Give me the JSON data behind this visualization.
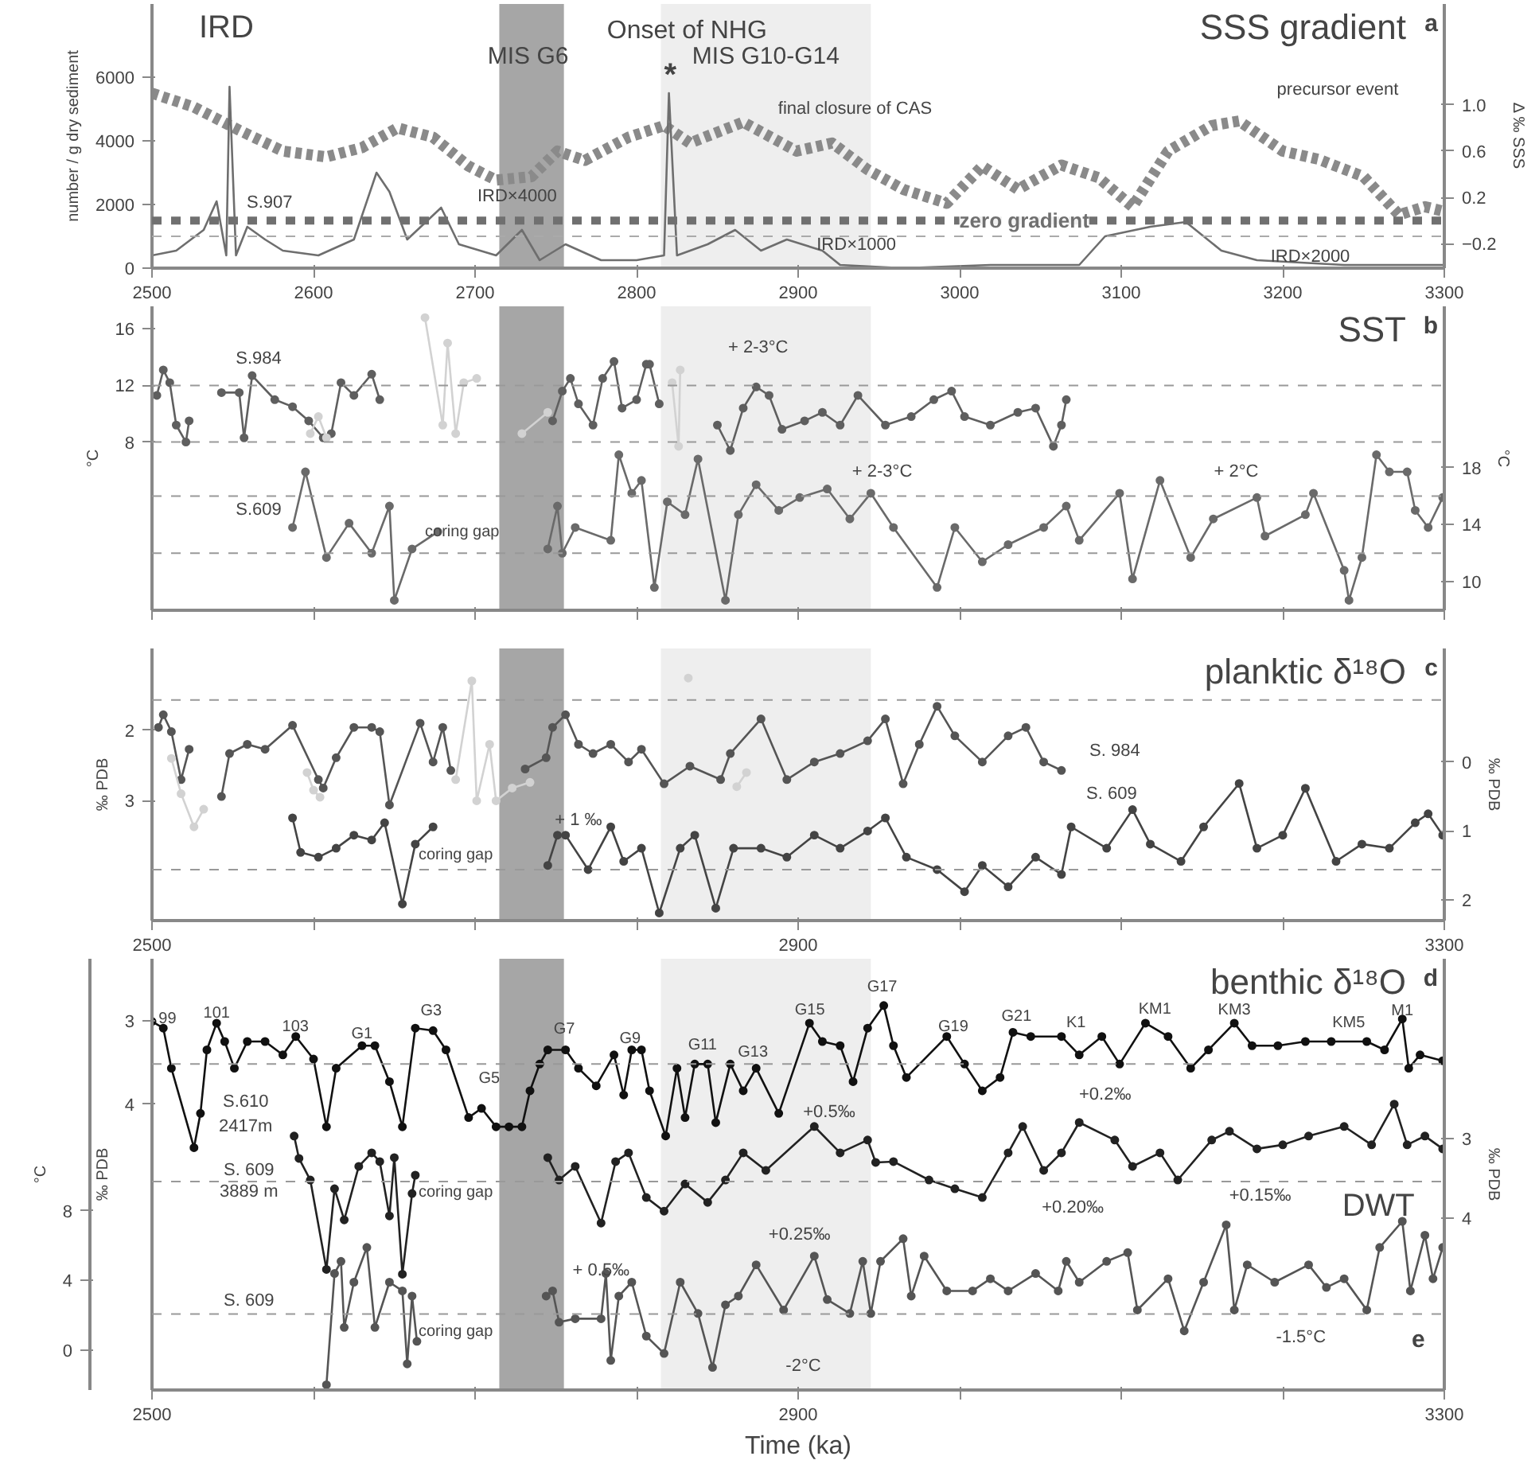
{
  "chart_data": [
    {
      "type": "line",
      "title": "SSS gradient",
      "subtitle": "a",
      "ylabel": "number / g dry sediment",
      "y2label": "Δ ‰ SSS",
      "xlim": [
        2500,
        3300
      ],
      "ylim": [
        0,
        8300
      ],
      "y2lim": [
        -0.41,
        1.87
      ],
      "xticks": [
        2500,
        2600,
        2700,
        2800,
        2900,
        3000,
        3100,
        3200,
        3300
      ],
      "yticks": [
        0,
        2000,
        4000,
        6000
      ],
      "y2ticks": [
        -0.2,
        0.2,
        0.6,
        {
          "value": 1,
          "label": "1.0"
        }
      ],
      "grid": false,
      "marker": "none",
      "series": [
        {
          "color": "#8a8a8a",
          "axis": "y2",
          "line_style": "dotted",
          "x": [
            2500,
            2526,
            2554,
            2581,
            2608,
            2630,
            2652,
            2674,
            2696,
            2713,
            2735,
            2751,
            2768,
            2795,
            2817,
            2833,
            2866,
            2899,
            2921,
            2943,
            2965,
            2992,
            3014,
            3036,
            3063,
            3086,
            3107,
            3129,
            3156,
            3173,
            3200,
            3222,
            3250,
            3272,
            3288,
            3300
          ],
          "values": [
            1.1,
            0.98,
            0.78,
            0.6,
            0.55,
            0.63,
            0.8,
            0.72,
            0.47,
            0.35,
            0.38,
            0.6,
            0.52,
            0.72,
            0.82,
            0.67,
            0.85,
            0.6,
            0.67,
            0.44,
            0.27,
            0.15,
            0.47,
            0.27,
            0.48,
            0.37,
            0.12,
            0.6,
            0.82,
            0.86,
            0.6,
            0.53,
            0.38,
            0.05,
            0.12,
            0.08
          ]
        },
        {
          "color": "#6e6e6e",
          "axis": "y",
          "line_style": "solid",
          "x": [
            2500,
            2515,
            2532,
            2540,
            2546,
            2548,
            2552,
            2559,
            2570,
            2581,
            2603,
            2625,
            2639,
            2647,
            2658,
            2679,
            2690,
            2713,
            2729,
            2740,
            2756,
            2778,
            2800,
            2817,
            2820,
            2825,
            2844,
            2861,
            2877,
            2893,
            2915,
            2926,
            2965,
            3019,
            3074,
            3090,
            3118,
            3140,
            3162,
            3184,
            3238,
            3300
          ],
          "values": [
            400,
            550,
            1200,
            2100,
            400,
            5700,
            400,
            1300,
            900,
            550,
            400,
            900,
            3000,
            2400,
            900,
            1900,
            750,
            400,
            1200,
            250,
            750,
            250,
            250,
            400,
            5500,
            400,
            750,
            1200,
            550,
            900,
            550,
            100,
            0,
            100,
            100,
            1000,
            1300,
            1450,
            550,
            250,
            100,
            100
          ]
        }
      ],
      "ref_lines": [
        {
          "axis": "y2",
          "value": 0,
          "label": "zero gradient",
          "color": "#707070",
          "line_style": "dashed"
        },
        {
          "axis": "y",
          "value": 1000,
          "color": "#aaaaaa",
          "line_style": "dashed"
        }
      ],
      "bands": [
        {
          "axis": "x",
          "from": 2715,
          "to": 2755,
          "color": "#a6a6a6"
        },
        {
          "axis": "x",
          "from": 2815,
          "to": 2945,
          "color": "#eeeeee"
        }
      ],
      "annotations": [
        "IRD",
        "Onset of NHG",
        "MIS G6",
        "MIS G10-G14",
        "*",
        "S.907",
        "IRD×4000",
        "IRD×1000",
        "final closure of CAS",
        "precursor event",
        {
          "text": "IRD×2000",
          "x": 3217,
          "y": 340
        }
      ]
    },
    {
      "type": "line",
      "title": "SST",
      "subtitle": "b",
      "ylabel": "°C",
      "y2label": "°C",
      "xlim": [
        2500,
        3300
      ],
      "ylim": [
        -3.9,
        17.6
      ],
      "y2lim": [
        8.0,
        29.3
      ],
      "tick_labels": "y",
      "xticks": [
        2500,
        2600,
        2700,
        2800,
        2900,
        3000,
        3100,
        3200,
        3300
      ],
      "yticks": [
        8,
        12,
        16
      ],
      "y2ticks": [
        10,
        14,
        18
      ],
      "grid": false,
      "marker": "circle",
      "line_style": "solid",
      "series": [
        {
          "color": "#5f5f5f",
          "axis": "y",
          "x": [
            2503,
            2507,
            2511,
            2515,
            2521,
            2523,
            2533,
            2543,
            2554,
            2557,
            2562,
            2576,
            2587,
            2597,
            2606,
            2611,
            2617,
            2625,
            2636,
            2641,
            2700,
            2748,
            2754,
            2759,
            2764,
            2773,
            2779,
            2786,
            2791,
            2800,
            2806,
            2808,
            2814,
            2830,
            2850,
            2858,
            2866,
            2874,
            2882,
            2890,
            2904,
            2915,
            2926,
            2937,
            2954,
            2970,
            2984,
            2995,
            3003,
            3019,
            3036,
            3047,
            3058,
            3063,
            3066
          ],
          "values": [
            11.3,
            13.1,
            12.2,
            9.2,
            8,
            9.5,
            null,
            11.5,
            11.5,
            8.3,
            12.7,
            11,
            10.5,
            9.5,
            8.3,
            8.6,
            12.2,
            11.3,
            12.8,
            11,
            null,
            9.5,
            11.6,
            12.5,
            10.7,
            9.2,
            12.5,
            13.7,
            10.4,
            11,
            13.5,
            13.5,
            10.7,
            null,
            9.2,
            7.4,
            10.4,
            11.9,
            11.3,
            8.9,
            9.5,
            10.1,
            9.2,
            11.3,
            9.2,
            9.8,
            11,
            11.6,
            9.8,
            9.2,
            10.1,
            10.4,
            7.7,
            9.2,
            11
          ]
        },
        {
          "color": "#d2d2d2",
          "axis": "y",
          "x": [
            2598,
            2603,
            2608,
            2640,
            2669,
            2680,
            2683,
            2688,
            2693,
            2701,
            2715,
            2729,
            2745,
            2780,
            2822,
            2826,
            2827
          ],
          "values": [
            8.6,
            9.8,
            8.3,
            null,
            16.8,
            9.2,
            15,
            8.6,
            12.2,
            12.5,
            null,
            8.6,
            10.1,
            null,
            12.2,
            7.7,
            13.1
          ]
        },
        {
          "color": "#6a6a6a",
          "axis": "y2",
          "x": [
            2587,
            2595,
            2608,
            2622,
            2636,
            2647,
            2650,
            2661,
            2677,
            2710,
            2745,
            2751,
            2754,
            2762,
            2784,
            2789,
            2797,
            2803,
            2811,
            2819,
            2830,
            2838,
            2855,
            2863,
            2874,
            2888,
            2901,
            2918,
            2932,
            2945,
            2959,
            2986,
            2997,
            3014,
            3030,
            3052,
            3066,
            3074,
            3099,
            3107,
            3124,
            3143,
            3157,
            3184,
            3189,
            3214,
            3219,
            3238,
            3241,
            3249,
            3258,
            3266,
            3277,
            3282,
            3290,
            3299
          ],
          "values": [
            13.8,
            17.7,
            11.7,
            14.1,
            12,
            15.3,
            8.7,
            12.3,
            13.5,
            null,
            12.3,
            15.3,
            12,
            13.8,
            12.9,
            18.9,
            16.2,
            17.1,
            9.6,
            15.6,
            14.7,
            18.6,
            8.7,
            14.7,
            16.8,
            15,
            15.9,
            16.5,
            14.4,
            16.2,
            13.8,
            9.6,
            13.8,
            11.4,
            12.6,
            13.8,
            15.3,
            12.9,
            16.2,
            10.2,
            17.1,
            11.7,
            14.4,
            15.9,
            13.2,
            14.7,
            16.2,
            10.8,
            8.7,
            11.7,
            18.9,
            17.7,
            17.7,
            15,
            13.8,
            15.9
          ]
        }
      ],
      "ref_lines": [
        {
          "axis": "y",
          "value": 12,
          "color": "#999999",
          "line_style": "dashed"
        },
        {
          "axis": "y",
          "value": 8,
          "color": "#999999",
          "line_style": "dashed"
        },
        {
          "axis": "y2",
          "value": 16,
          "color": "#999999",
          "line_style": "dashed"
        },
        {
          "axis": "y2",
          "value": 12,
          "color": "#999999",
          "line_style": "dashed"
        }
      ],
      "bands": [
        {
          "axis": "x",
          "from": 2715,
          "to": 2755,
          "color": "#a6a6a6"
        },
        {
          "axis": "x",
          "from": 2815,
          "to": 2945,
          "color": "#eeeeee"
        }
      ],
      "annotations": [
        "S.984",
        "S.609",
        "coring gap",
        "+ 2-3°C",
        "+ 2-3°C",
        "+ 2°C"
      ]
    },
    {
      "type": "line",
      "title": "planktic δ¹⁸O",
      "subtitle": "c",
      "ylabel": "‰ PDB",
      "y2label": "‰ PDB",
      "xlim": [
        2500,
        3300
      ],
      "ylim": [
        4.7,
        0.84
      ],
      "y2lim": [
        2.3,
        -1.65
      ],
      "xticks": [
        2500,
        {
          "value": 2600,
          "label": null
        },
        {
          "value": 2700,
          "label": null
        },
        {
          "value": 2800,
          "label": null
        },
        2900,
        {
          "value": 3000,
          "label": null
        },
        {
          "value": 3100,
          "label": null
        },
        {
          "value": 3200,
          "label": null
        },
        3300
      ],
      "yticks": [
        2,
        3
      ],
      "y2ticks": [
        0,
        1,
        2
      ],
      "grid": false,
      "marker": "circle",
      "line_style": "solid",
      "series": [
        {
          "color": "#555555",
          "axis": "y",
          "x": [
            2504,
            2507,
            2512,
            2518,
            2523,
            2533,
            2543,
            2548,
            2559,
            2570,
            2587,
            2603,
            2606,
            2614,
            2625,
            2636,
            2641,
            2647,
            2666,
            2674,
            2680,
            2685,
            2710,
            2731,
            2744,
            2748,
            2756,
            2764,
            2773,
            2784,
            2795,
            2803,
            2817,
            2833,
            2852,
            2858,
            2877,
            2893,
            2910,
            2926,
            2943,
            2954,
            2965,
            2975,
            2986,
            2997,
            3014,
            3030,
            3041,
            3052,
            3063
          ],
          "values": [
            1.96,
            1.78,
            2.02,
            2.7,
            2.27,
            null,
            2.94,
            2.33,
            2.2,
            2.27,
            1.93,
            2.7,
            2.82,
            2.39,
            1.96,
            1.96,
            2.02,
            3.06,
            1.9,
            2.45,
            1.96,
            2.57,
            null,
            2.55,
            2.39,
            1.96,
            1.78,
            2.2,
            2.33,
            2.2,
            2.45,
            2.27,
            2.76,
            2.51,
            2.7,
            2.33,
            1.84,
            2.7,
            2.45,
            2.33,
            2.15,
            1.84,
            2.76,
            2.2,
            1.66,
            2.08,
            2.45,
            2.08,
            1.96,
            2.45,
            2.57
          ]
        },
        {
          "color": "#d2d2d2",
          "axis": "y",
          "x": [
            2512,
            2518,
            2526,
            2532,
            2545,
            2596,
            2600,
            2604,
            2640,
            2688,
            2698,
            2701,
            2709,
            2713,
            2723,
            2734,
            2780,
            2832,
            2845,
            2862,
            2868
          ],
          "values": [
            2.4,
            2.9,
            3.37,
            3.12,
            null,
            2.6,
            2.85,
            2.95,
            null,
            2.7,
            1.3,
            3.0,
            2.2,
            3.0,
            2.82,
            2.74,
            null,
            1.26,
            null,
            2.8,
            2.6
          ]
        },
        {
          "color": "#444444",
          "axis": "y2",
          "x": [
            2587,
            2592,
            2603,
            2614,
            2625,
            2636,
            2644,
            2655,
            2663,
            2674,
            2710,
            2745,
            2751,
            2756,
            2770,
            2784,
            2792,
            2803,
            2814,
            2827,
            2836,
            2849,
            2860,
            2877,
            2893,
            2910,
            2926,
            2943,
            2954,
            2967,
            2986,
            3003,
            3014,
            3030,
            3047,
            3063,
            3069,
            3091,
            3107,
            3118,
            3137,
            3151,
            3173,
            3184,
            3200,
            3214,
            3233,
            3249,
            3266,
            3282,
            3290,
            3299
          ],
          "values": [
            0.81,
            1.31,
            1.38,
            1.25,
            1.06,
            1.13,
            0.88,
            2.06,
            1.19,
            0.94,
            null,
            1.5,
            1.06,
            1.06,
            1.56,
            0.94,
            1.44,
            1.25,
            2.19,
            1.25,
            1.06,
            2.12,
            1.25,
            1.25,
            1.38,
            1.06,
            1.25,
            1.0,
            0.81,
            1.38,
            1.56,
            1.88,
            1.5,
            1.81,
            1.38,
            1.63,
            0.94,
            1.25,
            0.69,
            1.19,
            1.44,
            0.94,
            0.31,
            1.25,
            1.06,
            0.38,
            1.44,
            1.19,
            1.25,
            0.88,
            0.75,
            1.06
          ]
        }
      ],
      "ref_lines": [
        {
          "axis": "y",
          "value": 1.57,
          "color": "#999999",
          "line_style": "dashed"
        },
        {
          "axis": "y2",
          "value": 1.56,
          "color": "#999999",
          "line_style": "dashed"
        }
      ],
      "bands": [
        {
          "axis": "x",
          "from": 2715,
          "to": 2755,
          "color": "#a6a6a6"
        },
        {
          "axis": "x",
          "from": 2815,
          "to": 2945,
          "color": "#eeeeee"
        }
      ],
      "annotations": [
        "S. 984",
        "S. 609",
        "+ 1 ‰",
        "coring gap"
      ]
    },
    {
      "type": "line",
      "title": "benthic δ¹⁸O",
      "subtitle": "d",
      "xlabel": "Time (ka)",
      "ylabel": "‰ PDB",
      "y2label": "‰ PDB",
      "y3label": "°C",
      "xlim": [
        2500,
        3300
      ],
      "ylim": [
        7.42,
        2.26
      ],
      "y2lim": [
        6.15,
        0.75
      ],
      "y3lim": [
        -2.3,
        22.5
      ],
      "xticks": [
        2500,
        {
          "value": 2600,
          "label": null
        },
        {
          "value": 2700,
          "label": null
        },
        {
          "value": 2800,
          "label": null
        },
        2900,
        {
          "value": 3000,
          "label": null
        },
        {
          "value": 3100,
          "label": null
        },
        {
          "value": 3200,
          "label": null
        },
        3300
      ],
      "yticks": [
        3,
        4
      ],
      "y2ticks": [
        3,
        4
      ],
      "y3ticks": [
        0,
        4,
        8
      ],
      "grid": false,
      "marker": "circle",
      "line_style": "solid",
      "series": [
        {
          "color": "#111111",
          "axis": "y",
          "x": [
            2500,
            2507,
            2512,
            2526,
            2530,
            2534,
            2540,
            2545,
            2551,
            2559,
            2570,
            2581,
            2589,
            2600,
            2608,
            2614,
            2630,
            2638,
            2647,
            2655,
            2663,
            2674,
            2682,
            2696,
            2704,
            2713,
            2721,
            2729,
            2734,
            2740,
            2745,
            2756,
            2764,
            2775,
            2786,
            2792,
            2797,
            2803,
            2808,
            2818,
            2825,
            2830,
            2836,
            2844,
            2849,
            2858,
            2866,
            2874,
            2888,
            2907,
            2915,
            2926,
            2934,
            2943,
            2953,
            2959,
            2967,
            2992,
            3003,
            3014,
            3025,
            3033,
            3044,
            3063,
            3074,
            3088,
            3099,
            3115,
            3129,
            3143,
            3154,
            3170,
            3181,
            3197,
            3214,
            3230,
            3252,
            3263,
            3274,
            3278,
            3285,
            3299
          ],
          "values": [
            3.01,
            3.09,
            3.57,
            4.52,
            4.11,
            3.35,
            3.03,
            3.25,
            3.57,
            3.25,
            3.25,
            3.41,
            3.19,
            3.46,
            4.27,
            3.57,
            3.3,
            3.3,
            3.73,
            4.27,
            3.09,
            3.12,
            3.35,
            4.16,
            4.05,
            4.27,
            4.27,
            4.27,
            3.84,
            3.52,
            3.35,
            3.35,
            3.57,
            3.78,
            3.41,
            3.89,
            3.35,
            3.35,
            3.84,
            4.38,
            3.57,
            4.16,
            3.52,
            3.52,
            4.22,
            3.52,
            3.84,
            3.57,
            4.11,
            3.03,
            3.25,
            3.3,
            3.73,
            3.09,
            2.82,
            3.3,
            3.68,
            3.19,
            3.52,
            3.84,
            3.68,
            3.14,
            3.19,
            3.19,
            3.41,
            3.19,
            3.52,
            3.03,
            3.19,
            3.57,
            3.35,
            3.03,
            3.3,
            3.3,
            3.25,
            3.25,
            3.25,
            3.35,
            2.98,
            3.57,
            3.41,
            3.48
          ]
        },
        {
          "color": "#222222",
          "axis": "y2",
          "x": [
            2588,
            2591,
            2598,
            2608,
            2613,
            2619,
            2628,
            2636,
            2641,
            2647,
            2650,
            2655,
            2661,
            2663,
            2710,
            2745,
            2752,
            2762,
            2778,
            2787,
            2795,
            2806,
            2817,
            2830,
            2844,
            2855,
            2866,
            2880,
            2910,
            2926,
            2943,
            2948,
            2959,
            2981,
            2997,
            3014,
            3030,
            3039,
            3052,
            3063,
            3074,
            3096,
            3107,
            3124,
            3135,
            3156,
            3167,
            3184,
            3200,
            3216,
            3238,
            3255,
            3269,
            3277,
            3288,
            3299
          ],
          "values": [
            2.97,
            3.25,
            3.52,
            4.64,
            3.63,
            4.02,
            3.35,
            3.18,
            3.29,
            3.97,
            3.24,
            4.7,
            3.69,
            3.46,
            null,
            3.24,
            3.52,
            3.35,
            4.06,
            3.29,
            3.18,
            3.74,
            3.91,
            3.57,
            3.8,
            3.52,
            3.18,
            3.4,
            2.85,
            3.18,
            3.02,
            3.3,
            3.29,
            3.52,
            3.63,
            3.74,
            3.18,
            2.85,
            3.4,
            3.18,
            2.8,
            3.02,
            3.35,
            3.18,
            3.52,
            3.02,
            2.91,
            3.13,
            3.08,
            2.97,
            2.85,
            3.08,
            2.57,
            3.08,
            2.97,
            3.13
          ]
        },
        {
          "color": "#555555",
          "axis": "y3",
          "x": [
            2608,
            2613,
            2617,
            2619,
            2625,
            2633,
            2638,
            2647,
            2655,
            2658,
            2661,
            2664,
            2700,
            2744,
            2748,
            2752,
            2762,
            2778,
            2781,
            2784,
            2789,
            2797,
            2806,
            2817,
            2827,
            2838,
            2847,
            2855,
            2863,
            2874,
            2891,
            2910,
            2918,
            2932,
            2940,
            2945,
            2951,
            2965,
            2970,
            2978,
            2992,
            3008,
            3019,
            3030,
            3047,
            3061,
            3066,
            3074,
            3091,
            3104,
            3110,
            3129,
            3139,
            3151,
            3165,
            3170,
            3178,
            3195,
            3216,
            3227,
            3238,
            3252,
            3260,
            3274,
            3279,
            3288,
            3293,
            3299
          ],
          "values": [
            -2.0,
            4.4,
            5.1,
            1.3,
            3.9,
            5.9,
            1.3,
            3.9,
            3.4,
            -0.8,
            3.1,
            0.5,
            null,
            3.1,
            3.4,
            1.6,
            1.8,
            1.8,
            4.4,
            -0.6,
            3.1,
            3.9,
            0.8,
            -0.2,
            3.9,
            2.1,
            -1.0,
            2.6,
            3.1,
            4.9,
            2.3,
            5.4,
            2.9,
            2.1,
            5.1,
            2.1,
            5.1,
            6.4,
            3.1,
            5.4,
            3.4,
            3.4,
            4.1,
            3.4,
            4.4,
            3.4,
            5.1,
            3.9,
            5.1,
            5.6,
            2.3,
            4.1,
            1.1,
            3.9,
            7.2,
            2.3,
            4.9,
            3.9,
            4.9,
            3.6,
            4.1,
            2.3,
            5.9,
            7.4,
            3.4,
            6.6,
            4.1,
            5.9
          ]
        }
      ],
      "ref_lines": [
        {
          "axis": "y",
          "value": 3.52,
          "color": "#999999",
          "line_style": "dashed"
        },
        {
          "axis": "y2",
          "value": 3.54,
          "color": "#999999",
          "line_style": "dashed"
        },
        {
          "axis": "y3",
          "value": 2.07,
          "color": "#999999",
          "line_style": "dashed"
        }
      ],
      "bands": [
        {
          "axis": "x",
          "from": 2715,
          "to": 2755,
          "color": "#a6a6a6"
        },
        {
          "axis": "x",
          "from": 2815,
          "to": 2945,
          "color": "#eeeeee"
        }
      ],
      "annotations": [
        "e",
        "99",
        "101",
        "103",
        "G1",
        "G3",
        "G5",
        "G7",
        "G9",
        "G11",
        "G13",
        "G15",
        "G17",
        "G19",
        "G21",
        "K1",
        "KM1",
        "KM3",
        "KM5",
        "M1",
        "S.610",
        "2417m",
        "S. 609",
        "3889 m",
        "coring gap",
        "coring gap",
        "S. 609",
        "+0.5‰",
        "+0.2‰",
        "+0.25‰",
        "+0.20‰",
        "+0.15‰",
        "+ 0.5‰",
        "-2°C",
        "-1.5°C",
        "DWT"
      ]
    }
  ]
}
